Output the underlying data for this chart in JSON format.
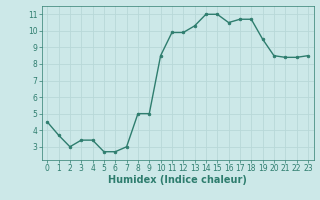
{
  "x": [
    0,
    1,
    2,
    3,
    4,
    5,
    6,
    7,
    8,
    9,
    10,
    11,
    12,
    13,
    14,
    15,
    16,
    17,
    18,
    19,
    20,
    21,
    22,
    23
  ],
  "y": [
    4.5,
    3.7,
    3.0,
    3.4,
    3.4,
    2.7,
    2.7,
    3.0,
    5.0,
    5.0,
    8.5,
    9.9,
    9.9,
    10.3,
    11.0,
    11.0,
    10.5,
    10.7,
    10.7,
    9.5,
    8.5,
    8.4,
    8.4,
    8.5
  ],
  "line_color": "#2e7d6e",
  "marker": "o",
  "marker_size": 2.0,
  "bg_color": "#cce8e8",
  "grid_color": "#b8d8d8",
  "xlabel": "Humidex (Indice chaleur)",
  "ylim": [
    2.2,
    11.5
  ],
  "xlim": [
    -0.5,
    23.5
  ],
  "yticks": [
    3,
    4,
    5,
    6,
    7,
    8,
    9,
    10,
    11
  ],
  "xticks": [
    0,
    1,
    2,
    3,
    4,
    5,
    6,
    7,
    8,
    9,
    10,
    11,
    12,
    13,
    14,
    15,
    16,
    17,
    18,
    19,
    20,
    21,
    22,
    23
  ],
  "tick_fontsize": 5.5,
  "xlabel_fontsize": 7.0,
  "linewidth": 1.0
}
